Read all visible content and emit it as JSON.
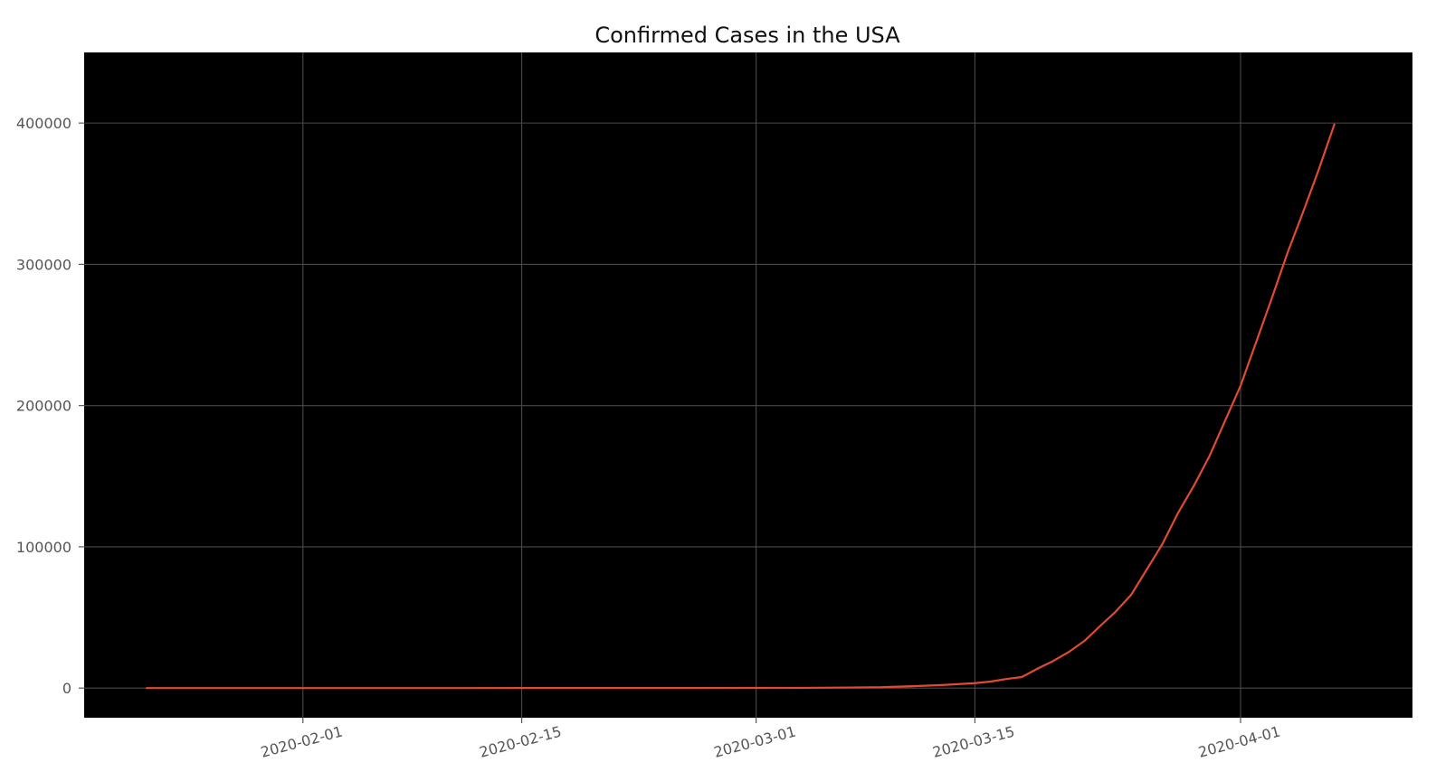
{
  "chart_data": {
    "type": "line",
    "title": "Confirmed Cases in the USA",
    "xlabel": "",
    "ylabel": "",
    "x_type": "date",
    "xlim": [
      "2020-01-18",
      "2020-04-12"
    ],
    "ylim": [
      -21000,
      450000
    ],
    "x_ticks": [
      "2020-02-01",
      "2020-02-15",
      "2020-03-01",
      "2020-03-15",
      "2020-04-01"
    ],
    "y_ticks": [
      0,
      100000,
      200000,
      300000,
      400000
    ],
    "y_tick_labels": [
      "0",
      "100000",
      "200000",
      "300000",
      "400000"
    ],
    "grid": true,
    "legend": "none",
    "background_color": "#000000",
    "grid_color": "#4a4a4a",
    "series": [
      {
        "color": "#e24a33",
        "x": [
          "2020-01-22",
          "2020-02-01",
          "2020-02-15",
          "2020-02-26",
          "2020-03-01",
          "2020-03-04",
          "2020-03-07",
          "2020-03-09",
          "2020-03-11",
          "2020-03-13",
          "2020-03-15",
          "2020-03-16",
          "2020-03-17",
          "2020-03-18",
          "2020-03-19",
          "2020-03-20",
          "2020-03-21",
          "2020-03-22",
          "2020-03-23",
          "2020-03-24",
          "2020-03-25",
          "2020-03-26",
          "2020-03-27",
          "2020-03-28",
          "2020-03-29",
          "2020-03-30",
          "2020-03-31",
          "2020-04-01",
          "2020-04-02",
          "2020-04-03",
          "2020-04-04",
          "2020-04-05",
          "2020-04-06",
          "2020-04-07"
        ],
        "y": [
          1,
          8,
          15,
          60,
          100,
          160,
          400,
          600,
          1300,
          2200,
          3500,
          4600,
          6400,
          7800,
          13700,
          19100,
          25500,
          33300,
          43800,
          54000,
          66000,
          84000,
          102000,
          124000,
          143000,
          164000,
          189000,
          214000,
          245000,
          276000,
          308000,
          337000,
          367000,
          399000
        ]
      }
    ]
  }
}
